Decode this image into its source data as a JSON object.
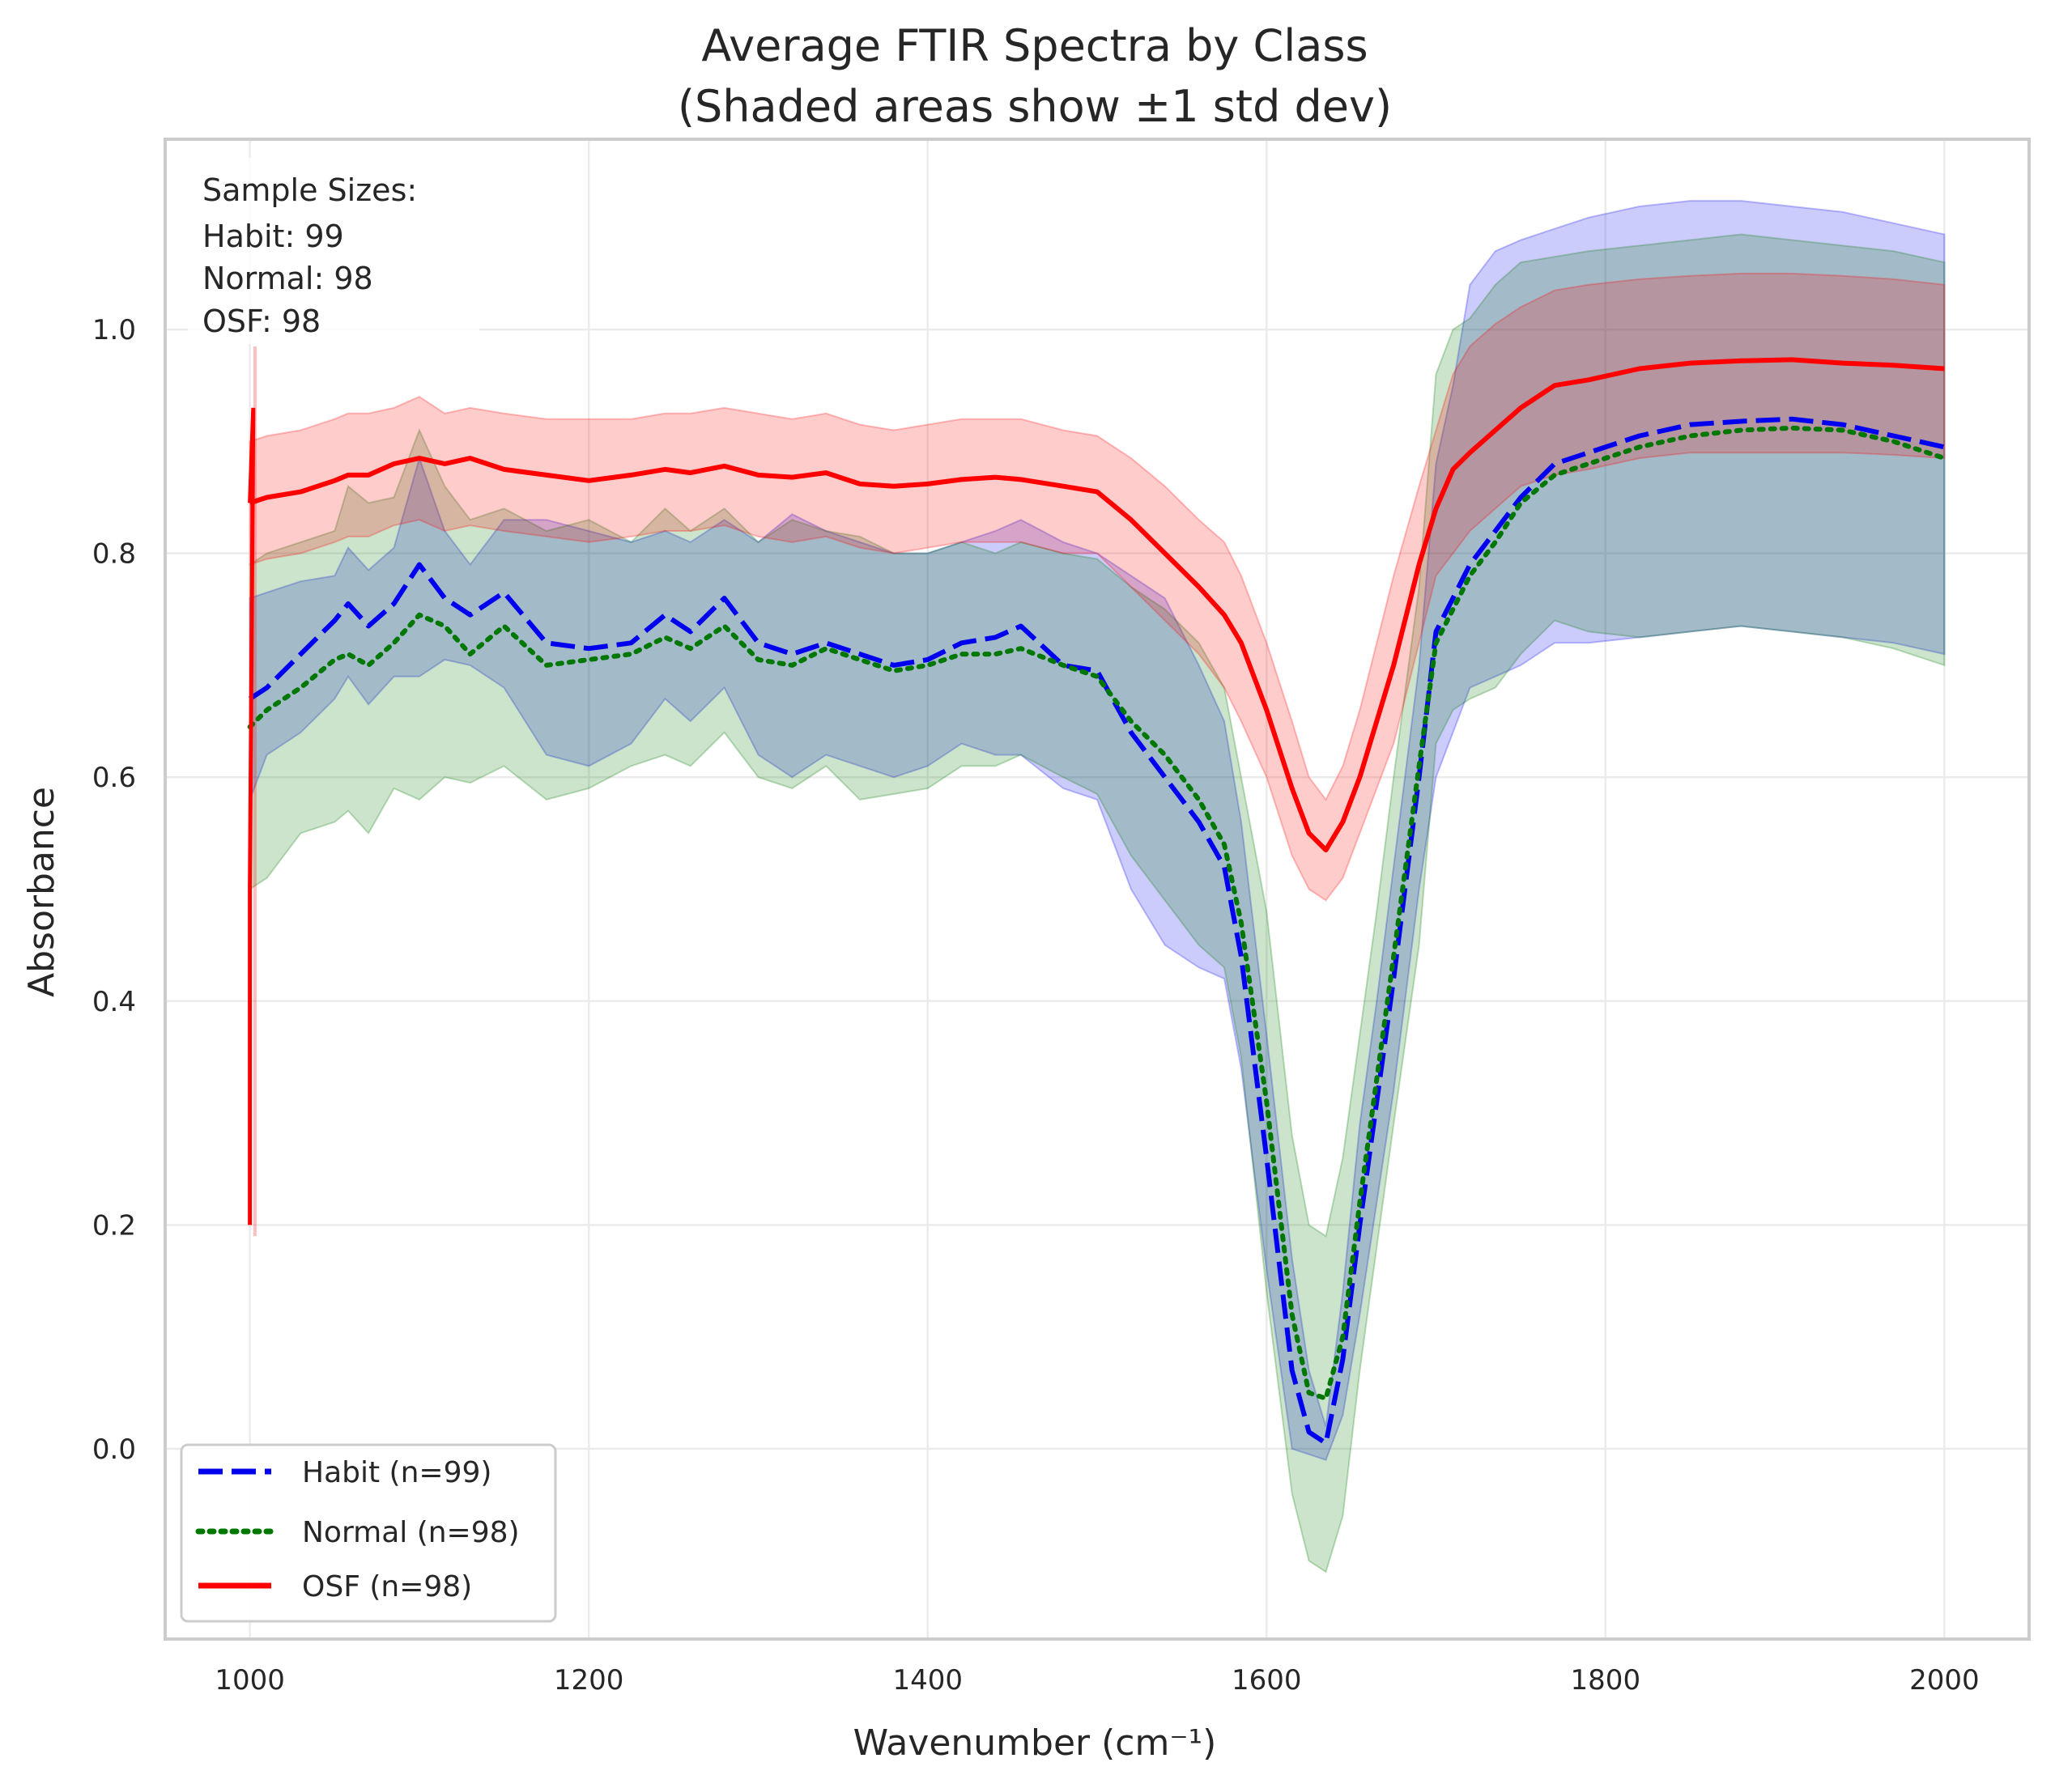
{
  "chart_data": {
    "type": "line",
    "title_lines": [
      "Average FTIR Spectra by Class",
      "(Shaded areas show ±1 std dev)"
    ],
    "xlabel": "Wavenumber (cm⁻¹)",
    "ylabel": "Absorbance",
    "xlim": [
      950,
      2050
    ],
    "ylim": [
      -0.17,
      1.17
    ],
    "xticks": [
      1000,
      1200,
      1400,
      1600,
      1800,
      2000
    ],
    "xtick_labels": [
      "1000",
      "1200",
      "1400",
      "1600",
      "1800",
      "2000"
    ],
    "yticks": [
      0.0,
      0.2,
      0.4,
      0.6,
      0.8,
      1.0
    ],
    "ytick_labels": [
      "0.0",
      "0.2",
      "0.4",
      "0.6",
      "0.8",
      "1.0"
    ],
    "grid": true,
    "legend_position": "lower-left",
    "info_box": {
      "lines": [
        "Sample Sizes:",
        "Habit: 99",
        "Normal: 98",
        "OSF: 98"
      ]
    },
    "x": [
      1000,
      1010,
      1030,
      1050,
      1058,
      1070,
      1085,
      1100,
      1115,
      1130,
      1150,
      1175,
      1200,
      1225,
      1245,
      1260,
      1280,
      1300,
      1320,
      1340,
      1360,
      1380,
      1400,
      1420,
      1440,
      1455,
      1480,
      1500,
      1520,
      1540,
      1560,
      1575,
      1585,
      1600,
      1615,
      1625,
      1635,
      1645,
      1655,
      1665,
      1675,
      1690,
      1700,
      1710,
      1720,
      1735,
      1750,
      1770,
      1790,
      1820,
      1850,
      1880,
      1910,
      1940,
      1970,
      2000
    ],
    "series": [
      {
        "name": "Habit (n=99)",
        "color": "#0000ee",
        "style": "dashed",
        "fill_alpha": 0.2,
        "mean": [
          0.67,
          0.68,
          0.71,
          0.74,
          0.755,
          0.735,
          0.755,
          0.79,
          0.76,
          0.745,
          0.765,
          0.72,
          0.715,
          0.72,
          0.745,
          0.73,
          0.76,
          0.72,
          0.71,
          0.72,
          0.71,
          0.7,
          0.705,
          0.72,
          0.725,
          0.735,
          0.7,
          0.695,
          0.64,
          0.6,
          0.56,
          0.52,
          0.44,
          0.26,
          0.07,
          0.015,
          0.005,
          0.08,
          0.2,
          0.31,
          0.42,
          0.6,
          0.73,
          0.76,
          0.79,
          0.82,
          0.85,
          0.88,
          0.89,
          0.905,
          0.915,
          0.918,
          0.92,
          0.915,
          0.905,
          0.895
        ],
        "upper": [
          0.76,
          0.765,
          0.775,
          0.78,
          0.805,
          0.785,
          0.805,
          0.885,
          0.82,
          0.79,
          0.83,
          0.83,
          0.82,
          0.81,
          0.82,
          0.81,
          0.83,
          0.81,
          0.835,
          0.82,
          0.81,
          0.8,
          0.8,
          0.81,
          0.82,
          0.83,
          0.81,
          0.8,
          0.78,
          0.76,
          0.7,
          0.65,
          0.56,
          0.37,
          0.17,
          0.07,
          0.02,
          0.14,
          0.29,
          0.4,
          0.52,
          0.7,
          0.88,
          0.95,
          1.04,
          1.07,
          1.08,
          1.09,
          1.1,
          1.11,
          1.115,
          1.115,
          1.11,
          1.105,
          1.095,
          1.085
        ],
        "lower": [
          0.58,
          0.62,
          0.64,
          0.67,
          0.69,
          0.665,
          0.69,
          0.69,
          0.705,
          0.7,
          0.68,
          0.62,
          0.61,
          0.63,
          0.67,
          0.65,
          0.68,
          0.62,
          0.6,
          0.62,
          0.61,
          0.6,
          0.61,
          0.63,
          0.62,
          0.62,
          0.59,
          0.58,
          0.5,
          0.45,
          0.43,
          0.42,
          0.34,
          0.16,
          0.0,
          -0.005,
          -0.01,
          0.03,
          0.12,
          0.22,
          0.32,
          0.5,
          0.6,
          0.64,
          0.68,
          0.69,
          0.7,
          0.72,
          0.72,
          0.725,
          0.73,
          0.735,
          0.73,
          0.725,
          0.72,
          0.71
        ]
      },
      {
        "name": "Normal (n=98)",
        "color": "#007700",
        "style": "dotted",
        "fill_alpha": 0.2,
        "mean": [
          0.645,
          0.66,
          0.68,
          0.705,
          0.71,
          0.7,
          0.72,
          0.745,
          0.735,
          0.71,
          0.735,
          0.7,
          0.705,
          0.71,
          0.725,
          0.715,
          0.735,
          0.705,
          0.7,
          0.715,
          0.705,
          0.695,
          0.7,
          0.71,
          0.71,
          0.715,
          0.7,
          0.69,
          0.65,
          0.62,
          0.58,
          0.54,
          0.47,
          0.31,
          0.12,
          0.05,
          0.045,
          0.1,
          0.22,
          0.33,
          0.44,
          0.61,
          0.72,
          0.75,
          0.78,
          0.81,
          0.845,
          0.87,
          0.88,
          0.895,
          0.905,
          0.91,
          0.912,
          0.91,
          0.9,
          0.885
        ],
        "upper": [
          0.79,
          0.8,
          0.81,
          0.82,
          0.86,
          0.845,
          0.85,
          0.91,
          0.86,
          0.83,
          0.84,
          0.82,
          0.83,
          0.81,
          0.84,
          0.82,
          0.84,
          0.81,
          0.83,
          0.82,
          0.815,
          0.8,
          0.8,
          0.81,
          0.8,
          0.81,
          0.8,
          0.795,
          0.77,
          0.75,
          0.72,
          0.68,
          0.6,
          0.48,
          0.28,
          0.2,
          0.19,
          0.26,
          0.37,
          0.48,
          0.6,
          0.77,
          0.96,
          1.0,
          1.01,
          1.04,
          1.06,
          1.065,
          1.07,
          1.075,
          1.08,
          1.085,
          1.08,
          1.075,
          1.07,
          1.06
        ],
        "lower": [
          0.5,
          0.51,
          0.55,
          0.56,
          0.57,
          0.55,
          0.59,
          0.58,
          0.6,
          0.595,
          0.61,
          0.58,
          0.59,
          0.61,
          0.62,
          0.61,
          0.64,
          0.6,
          0.59,
          0.61,
          0.58,
          0.585,
          0.59,
          0.61,
          0.61,
          0.62,
          0.6,
          0.585,
          0.53,
          0.49,
          0.45,
          0.43,
          0.35,
          0.14,
          -0.04,
          -0.1,
          -0.11,
          -0.06,
          0.07,
          0.18,
          0.29,
          0.45,
          0.63,
          0.66,
          0.67,
          0.68,
          0.71,
          0.74,
          0.73,
          0.725,
          0.73,
          0.735,
          0.73,
          0.725,
          0.715,
          0.7
        ]
      },
      {
        "name": "OSF (n=98)",
        "color": "#ff0000",
        "style": "solid",
        "fill_alpha": 0.2,
        "mean": [
          0.845,
          0.85,
          0.855,
          0.865,
          0.87,
          0.87,
          0.88,
          0.885,
          0.88,
          0.885,
          0.875,
          0.87,
          0.865,
          0.87,
          0.875,
          0.872,
          0.878,
          0.87,
          0.868,
          0.872,
          0.862,
          0.86,
          0.862,
          0.866,
          0.868,
          0.866,
          0.86,
          0.855,
          0.83,
          0.8,
          0.77,
          0.745,
          0.72,
          0.66,
          0.59,
          0.55,
          0.535,
          0.56,
          0.6,
          0.65,
          0.7,
          0.79,
          0.84,
          0.875,
          0.89,
          0.91,
          0.93,
          0.95,
          0.955,
          0.965,
          0.97,
          0.972,
          0.973,
          0.97,
          0.968,
          0.965
        ],
        "upper": [
          0.9,
          0.905,
          0.91,
          0.92,
          0.925,
          0.925,
          0.93,
          0.94,
          0.925,
          0.93,
          0.925,
          0.92,
          0.92,
          0.92,
          0.925,
          0.925,
          0.93,
          0.925,
          0.92,
          0.925,
          0.915,
          0.91,
          0.915,
          0.92,
          0.92,
          0.92,
          0.91,
          0.905,
          0.885,
          0.86,
          0.83,
          0.81,
          0.78,
          0.72,
          0.65,
          0.6,
          0.58,
          0.61,
          0.66,
          0.72,
          0.78,
          0.86,
          0.91,
          0.96,
          0.985,
          1.005,
          1.02,
          1.035,
          1.04,
          1.045,
          1.048,
          1.05,
          1.05,
          1.048,
          1.045,
          1.04
        ],
        "lower": [
          0.79,
          0.795,
          0.8,
          0.81,
          0.815,
          0.815,
          0.825,
          0.83,
          0.82,
          0.825,
          0.82,
          0.815,
          0.81,
          0.815,
          0.82,
          0.82,
          0.825,
          0.815,
          0.81,
          0.815,
          0.805,
          0.8,
          0.805,
          0.81,
          0.81,
          0.81,
          0.8,
          0.8,
          0.77,
          0.74,
          0.71,
          0.68,
          0.65,
          0.6,
          0.53,
          0.5,
          0.49,
          0.51,
          0.55,
          0.59,
          0.63,
          0.72,
          0.78,
          0.8,
          0.82,
          0.84,
          0.86,
          0.87,
          0.875,
          0.885,
          0.89,
          0.89,
          0.89,
          0.89,
          0.888,
          0.885
        ]
      }
    ],
    "osf_start_spike": {
      "x": [
        1000,
        1000,
        1002
      ],
      "y": [
        0.2,
        0.5,
        0.93
      ]
    }
  }
}
